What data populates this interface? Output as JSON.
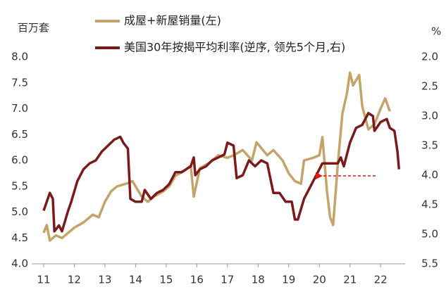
{
  "chart_data": {
    "type": "line",
    "y_label": "百万套",
    "y2_label": "%",
    "xlim": [
      10.61,
      22.8
    ],
    "xticks": [
      11,
      12,
      13,
      14,
      15,
      16,
      17,
      18,
      19,
      20,
      21,
      22
    ],
    "ylim": [
      4.0,
      8.0
    ],
    "yticks": [
      {
        "value": 4,
        "label": "4.0"
      },
      {
        "value": 4.5,
        "label": "4.5"
      },
      {
        "value": 5,
        "label": "5.0"
      },
      {
        "value": 5.5,
        "label": "5.5"
      },
      {
        "value": 6,
        "label": "6.0"
      },
      {
        "value": 6.5,
        "label": "6.5"
      },
      {
        "value": 7,
        "label": "7.0"
      },
      {
        "value": 7.5,
        "label": "7.5"
      },
      {
        "value": 8,
        "label": "8.0"
      }
    ],
    "y2lim": [
      5.5,
      2.0
    ],
    "y2ticks": [
      {
        "value": 2,
        "label": "2.0"
      },
      2.5,
      {
        "value": 3,
        "label": "3.0"
      },
      3.5,
      {
        "value": 4,
        "label": "4.0"
      },
      4.5,
      {
        "value": 5,
        "label": "5.0"
      },
      5.5
    ],
    "series": [
      {
        "name": "成屋+新屋销量(左)",
        "color": "#c4a46b",
        "x": [
          11.0,
          11.1,
          11.2,
          11.4,
          11.6,
          11.8,
          12.0,
          12.3,
          12.6,
          12.8,
          13.0,
          13.2,
          13.4,
          13.7,
          13.9,
          14.0,
          14.2,
          14.4,
          14.6,
          14.9,
          15.1,
          15.3,
          15.6,
          15.8,
          15.9,
          16.1,
          16.4,
          16.7,
          17.0,
          17.2,
          17.5,
          17.8,
          17.95,
          18.3,
          18.5,
          18.8,
          19.0,
          19.2,
          19.4,
          19.5,
          19.8,
          20.0,
          20.1,
          20.25,
          20.35,
          20.45,
          20.6,
          20.75,
          20.9,
          21.0,
          21.1,
          21.3,
          21.4,
          21.6,
          21.8,
          22.0,
          22.15,
          22.3
        ],
        "values": [
          4.6,
          4.75,
          4.45,
          4.55,
          4.5,
          4.6,
          4.7,
          4.8,
          4.95,
          4.9,
          5.2,
          5.4,
          5.5,
          5.55,
          5.6,
          5.5,
          5.3,
          5.2,
          5.3,
          5.4,
          5.5,
          5.7,
          5.8,
          5.9,
          5.3,
          5.85,
          5.95,
          6.1,
          6.05,
          6.1,
          6.2,
          6.0,
          6.35,
          6.1,
          6.2,
          6.0,
          5.75,
          5.6,
          5.55,
          6.0,
          6.05,
          6.1,
          6.45,
          5.4,
          4.9,
          4.75,
          5.9,
          6.9,
          7.3,
          7.7,
          7.45,
          7.65,
          7.05,
          6.6,
          6.7,
          7.0,
          7.2,
          6.95
        ]
      },
      {
        "name": "美国30年按揭平均利率(逆序, 领先5个月,右)",
        "color": "#7b1a1a",
        "axis": "y2",
        "x": [
          11.0,
          11.2,
          11.3,
          11.35,
          11.5,
          11.6,
          11.8,
          11.9,
          12.1,
          12.3,
          12.5,
          12.7,
          12.9,
          13.1,
          13.3,
          13.5,
          13.6,
          13.75,
          13.83,
          14.0,
          14.2,
          14.3,
          14.5,
          14.7,
          14.9,
          15.1,
          15.3,
          15.5,
          15.8,
          15.9,
          15.95,
          16.1,
          16.3,
          16.5,
          16.7,
          16.9,
          17.0,
          17.2,
          17.3,
          17.5,
          17.7,
          17.9,
          18.1,
          18.3,
          18.5,
          18.7,
          18.9,
          19.1,
          19.2,
          19.3,
          19.5,
          19.7,
          19.9,
          20.1,
          20.3,
          20.6,
          20.7,
          20.8,
          21.0,
          21.2,
          21.4,
          21.6,
          21.75,
          21.8,
          22.0,
          22.2,
          22.3,
          22.45,
          22.55,
          22.6
        ],
        "values": [
          4.6,
          4.3,
          4.4,
          4.95,
          4.85,
          4.95,
          4.6,
          4.45,
          4.1,
          3.9,
          3.8,
          3.75,
          3.6,
          3.5,
          3.4,
          3.35,
          3.45,
          3.55,
          4.4,
          4.45,
          4.45,
          4.25,
          4.4,
          4.3,
          4.25,
          4.15,
          3.95,
          3.95,
          3.85,
          3.7,
          4.0,
          3.9,
          3.85,
          3.75,
          3.7,
          3.65,
          3.45,
          3.5,
          4.05,
          4.0,
          3.75,
          3.85,
          3.75,
          3.8,
          4.3,
          4.3,
          4.45,
          4.45,
          4.75,
          4.75,
          4.4,
          4.2,
          4.0,
          3.8,
          3.8,
          3.8,
          3.7,
          3.85,
          3.45,
          3.2,
          3.15,
          2.95,
          3.0,
          3.25,
          3.1,
          3.05,
          3.2,
          3.25,
          3.6,
          3.9
        ]
      }
    ]
  }
}
